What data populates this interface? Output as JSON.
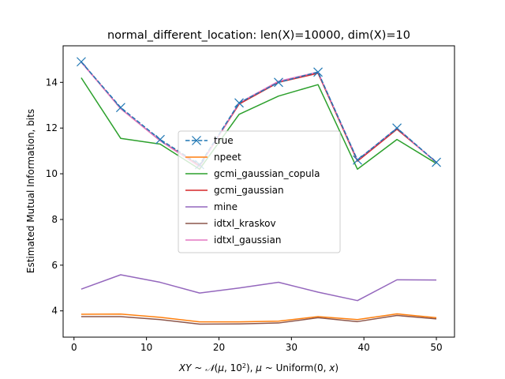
{
  "chart_data": {
    "type": "line",
    "title": "normal_different_location: len(X)=10000, dim(X)=10",
    "xlabel": "XY ~ N(μ, 10²), μ ~ Uniform(0, x)",
    "ylabel": "Estimated Mutual Information, bits",
    "xlim": [
      -1.5,
      52.5
    ],
    "ylim": [
      2.85,
      15.6
    ],
    "xticks": [
      0,
      10,
      20,
      30,
      40,
      50
    ],
    "yticks": [
      4,
      6,
      8,
      10,
      12,
      14
    ],
    "grid": false,
    "legend_position": "center",
    "x": [
      1,
      6.44,
      11.89,
      17.33,
      22.78,
      28.22,
      33.67,
      39.11,
      44.56,
      50
    ],
    "series": [
      {
        "name": "true",
        "color": "#1f77b4",
        "style": "dashed",
        "marker": "x",
        "values": [
          14.9,
          12.9,
          11.5,
          10.4,
          13.1,
          14.0,
          14.45,
          10.6,
          12.0,
          10.5
        ]
      },
      {
        "name": "npeet",
        "color": "#ff7f0e",
        "style": "solid",
        "values": [
          3.85,
          3.86,
          3.72,
          3.52,
          3.52,
          3.55,
          3.75,
          3.62,
          3.87,
          3.7
        ]
      },
      {
        "name": "gcmi_gaussian_copula",
        "color": "#2ca02c",
        "style": "solid",
        "values": [
          14.2,
          11.55,
          11.3,
          10.2,
          12.6,
          13.4,
          13.9,
          10.2,
          11.5,
          10.45
        ]
      },
      {
        "name": "gcmi_gaussian",
        "color": "#d62728",
        "style": "solid",
        "values": [
          14.9,
          12.85,
          11.45,
          10.35,
          13.05,
          14.0,
          14.4,
          10.55,
          11.95,
          10.5
        ]
      },
      {
        "name": "mine",
        "color": "#9467bd",
        "style": "solid",
        "values": [
          4.95,
          5.58,
          5.25,
          4.78,
          5.0,
          5.25,
          4.82,
          4.45,
          5.36,
          5.35
        ]
      },
      {
        "name": "idtxl_kraskov",
        "color": "#8c564b",
        "style": "solid",
        "values": [
          3.75,
          3.75,
          3.62,
          3.42,
          3.43,
          3.47,
          3.7,
          3.53,
          3.8,
          3.65
        ]
      },
      {
        "name": "idtxl_gaussian",
        "color": "#e377c2",
        "style": "solid",
        "values": [
          14.88,
          12.85,
          11.45,
          10.3,
          13.1,
          14.05,
          14.45,
          10.6,
          12.0,
          10.48
        ]
      }
    ]
  }
}
